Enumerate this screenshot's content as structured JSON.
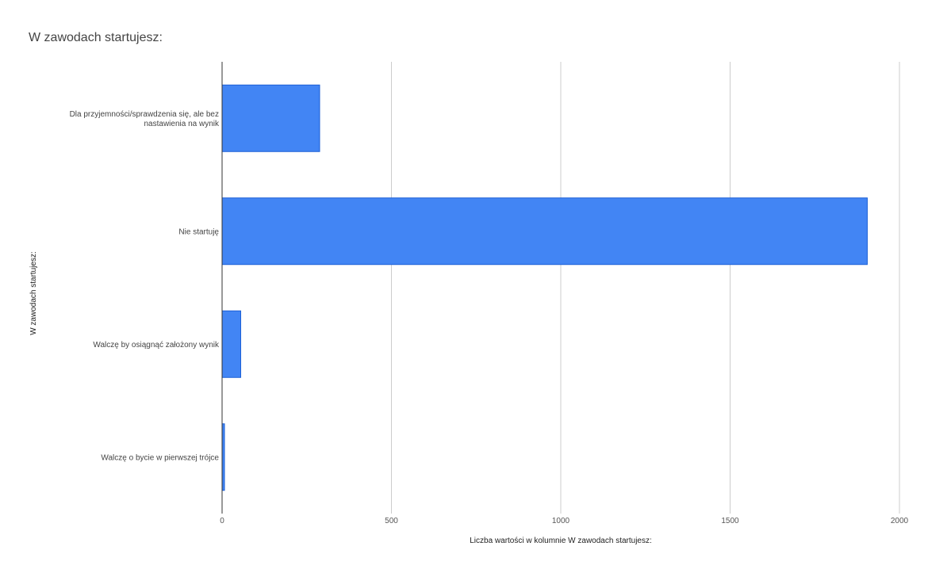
{
  "chart_data": {
    "type": "bar",
    "orientation": "horizontal",
    "title": "W zawodach startujesz:",
    "xlabel": "Liczba wartości w kolumnie W zawodach startujesz:",
    "ylabel": "W zawodach startujesz:",
    "categories": [
      [
        "Dla przyjemności/sprawdzenia się, ale bez",
        "nastawienia na wynik"
      ],
      [
        "Nie startuję"
      ],
      [
        "Walczę by osiągnąć założony wynik"
      ],
      [
        "Walczę o bycie w pierwszej trójce"
      ]
    ],
    "values": [
      288,
      1905,
      55,
      7
    ],
    "xlim": [
      0,
      2000
    ],
    "xticks": [
      0,
      500,
      1000,
      1500,
      2000
    ],
    "grid": true,
    "legend": "none",
    "colors": {
      "bar_fill": "#4285f4",
      "bar_stroke": "#1a5fd6",
      "grid": "#cccccc",
      "baseline": "#333333"
    }
  }
}
